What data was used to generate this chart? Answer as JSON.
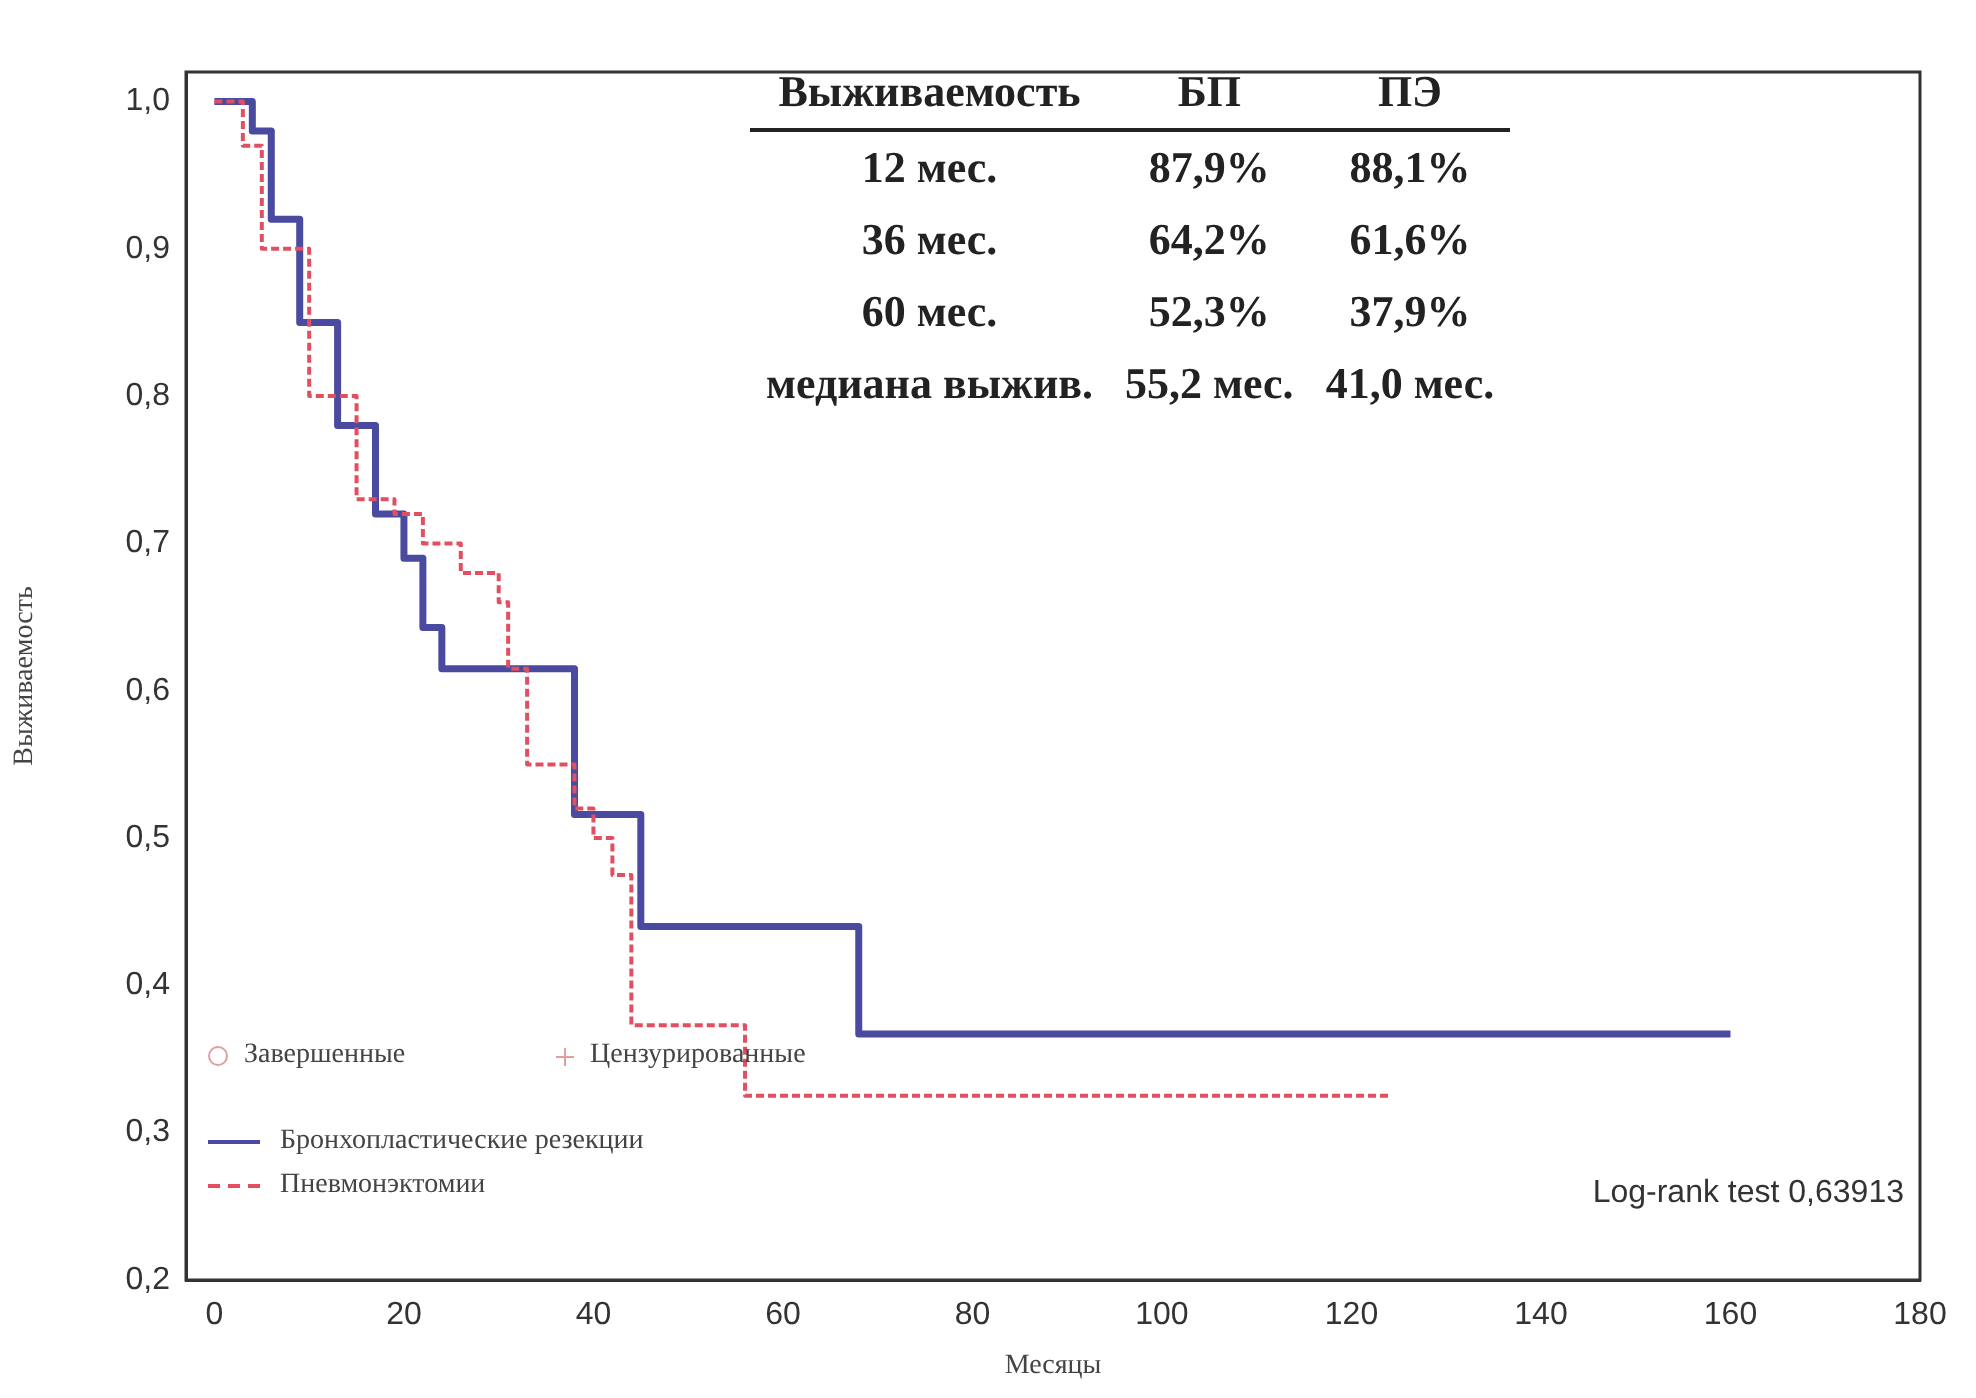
{
  "chart_data": {
    "type": "step",
    "xlabel": "Месяцы",
    "ylabel": "Выживаемость",
    "xlim": [
      -3,
      180
    ],
    "xticks": [
      0,
      20,
      40,
      60,
      80,
      100,
      120,
      140,
      160,
      180
    ],
    "ylim": [
      0.2,
      1.02
    ],
    "yticks": [
      {
        "value": 0.2,
        "label": "0,2"
      },
      {
        "value": 0.3,
        "label": "0,3"
      },
      {
        "value": 0.4,
        "label": "0,4"
      },
      {
        "value": 0.5,
        "label": "0,5"
      },
      {
        "value": 0.6,
        "label": "0,6"
      },
      {
        "value": 0.7,
        "label": "0,7"
      },
      {
        "value": 0.8,
        "label": "0,8"
      },
      {
        "value": 0.9,
        "label": "0,9"
      },
      {
        "value": 1.0,
        "label": "1,0"
      }
    ],
    "grid": false,
    "legend": "bottom left",
    "series": [
      {
        "name": "Бронхопластические резекции",
        "color": "#4a4aa0",
        "line_style": "solid",
        "x": [
          0,
          4,
          6,
          9,
          13,
          17,
          20,
          22,
          24,
          38,
          45,
          68,
          92,
          160
        ],
        "values": [
          1.0,
          1.0,
          0.98,
          0.92,
          0.85,
          0.78,
          0.72,
          0.69,
          0.643,
          0.615,
          0.516,
          0.44,
          0.367,
          0.367
        ]
      },
      {
        "name": "Пневмонэктомии",
        "color": "#e05060",
        "line_style": "dashed",
        "x": [
          0,
          3,
          5,
          10,
          15,
          19,
          22,
          26,
          30,
          31,
          33,
          38,
          40,
          42,
          44,
          56,
          76,
          124
        ],
        "values": [
          1.0,
          1.0,
          0.97,
          0.9,
          0.8,
          0.73,
          0.72,
          0.7,
          0.68,
          0.66,
          0.615,
          0.55,
          0.52,
          0.5,
          0.475,
          0.373,
          0.325,
          0.325
        ]
      }
    ],
    "annotations": [
      "Выживаемость",
      "БП",
      "ПЭ",
      "12 мес.",
      "87,9%",
      "88,1%",
      "36 мес.",
      "64,2%",
      "61,6%",
      "60 мес.",
      "52,3%",
      "37,9%",
      "медиана выжив.",
      "55,2 мес.",
      "41,0 мес.",
      "Log-rank test 0,63913",
      "Завершенные",
      "Цензурированные"
    ]
  }
}
